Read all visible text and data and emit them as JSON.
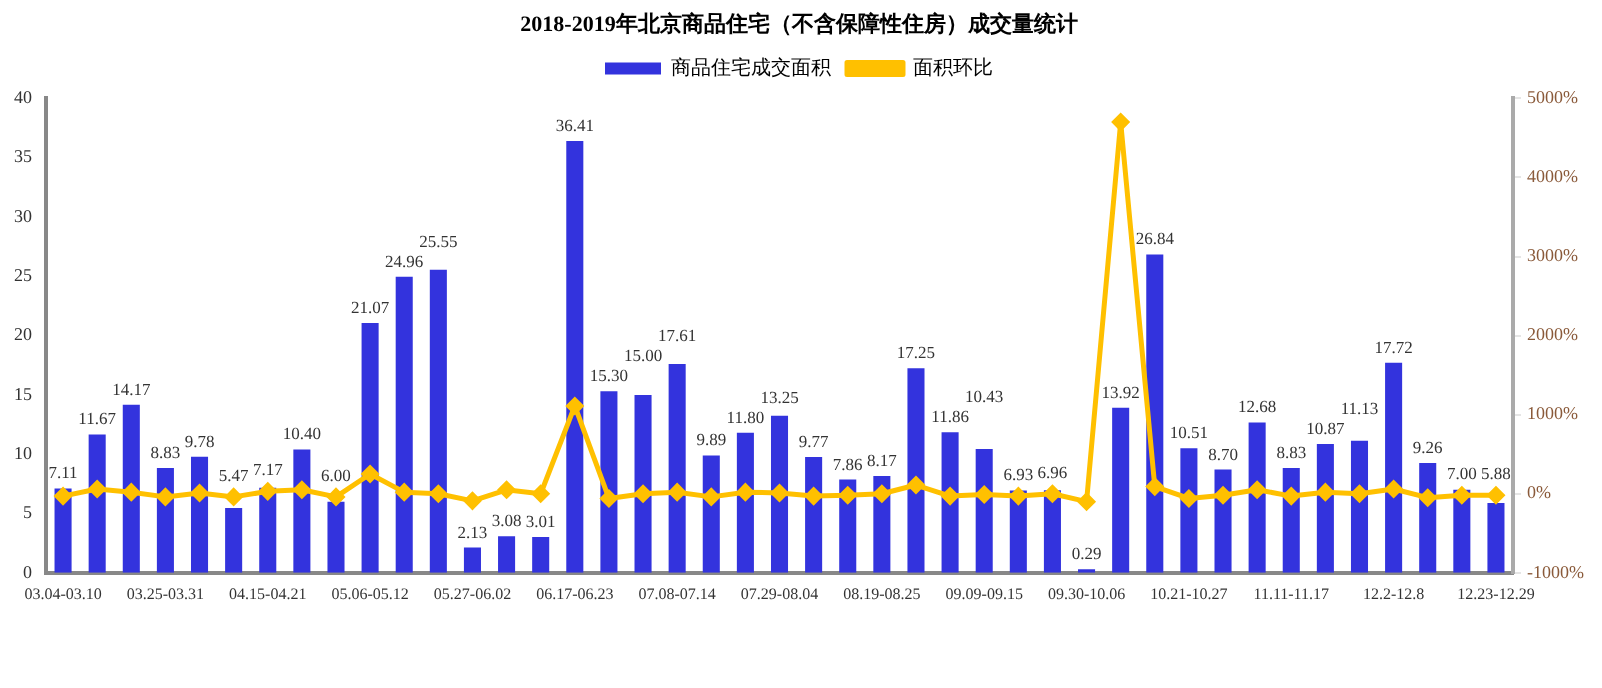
{
  "chart_data": {
    "type": "bar",
    "title": "2018-2019年北京商品住宅（不含保障性住房）成交量统计",
    "categories": [
      "03.04-03.10",
      null,
      null,
      "03.25-03.31",
      null,
      null,
      "04.15-04.21",
      null,
      null,
      "05.06-05.12",
      null,
      null,
      "05.27-06.02",
      null,
      null,
      "06.17-06.23",
      null,
      null,
      "07.08-07.14",
      null,
      null,
      "07.29-08.04",
      null,
      null,
      "08.19-08.25",
      null,
      null,
      "09.09-09.15",
      null,
      null,
      "09.30-10.06",
      null,
      null,
      "10.21-10.27",
      null,
      null,
      "11.11-11.17",
      null,
      null,
      "12.2-12.8",
      null,
      null,
      "12.23-12.29"
    ],
    "series": [
      {
        "name": "商品住宅成交面积",
        "type": "bar",
        "color": "#3333dd",
        "values": [
          7.11,
          11.67,
          14.17,
          8.83,
          9.78,
          5.47,
          7.17,
          10.4,
          6.0,
          21.07,
          24.96,
          25.55,
          2.13,
          3.08,
          3.01,
          36.41,
          15.3,
          15.0,
          17.61,
          9.89,
          11.8,
          13.25,
          9.77,
          7.86,
          8.17,
          17.25,
          11.86,
          10.43,
          6.93,
          6.96,
          0.29,
          13.92,
          26.84,
          10.51,
          8.7,
          12.68,
          8.83,
          10.87,
          11.13,
          17.72,
          9.26,
          7.0,
          5.88
        ],
        "value_labels": [
          "7.11",
          "11.67",
          "14.17",
          "8.83",
          "9.78",
          "5.47",
          "7.17",
          "10.40",
          "6.00",
          "21.07",
          "24.96",
          "25.55",
          "2.13",
          "3.08",
          "3.01",
          "36.41",
          "15.30",
          "15.00",
          "17.61",
          "9.89",
          "11.80",
          "13.25",
          "9.77",
          "7.86",
          "8.17",
          "17.25",
          "11.86",
          "10.43",
          "6.93",
          "6.96",
          "0.29",
          "13.92",
          "26.84",
          "10.51",
          "8.70",
          "12.68",
          "8.83",
          "10.87",
          "11.13",
          "17.72",
          "9.26",
          "7.00",
          "5.88"
        ]
      },
      {
        "name": "面积环比",
        "type": "line",
        "axis": "y2",
        "color": "#ffc000",
        "marker": "diamond",
        "values": [
          -30,
          60,
          20,
          -40,
          10,
          -40,
          30,
          50,
          -40,
          250,
          20,
          0,
          -90,
          50,
          0,
          1110,
          -60,
          0,
          20,
          -40,
          20,
          10,
          -30,
          -20,
          0,
          110,
          -30,
          -10,
          -30,
          0,
          -100,
          4700,
          90,
          -60,
          -20,
          50,
          -30,
          20,
          0,
          60,
          -50,
          -20,
          -20
        ]
      }
    ],
    "ylim": [
      0,
      40
    ],
    "yticks": [
      0,
      5,
      10,
      15,
      20,
      25,
      30,
      35,
      40
    ],
    "y2lim": [
      -1000,
      5000
    ],
    "y2ticks": [
      {
        "value": -1000,
        "label": "-1000%"
      },
      {
        "value": 0,
        "label": "0%"
      },
      {
        "value": 1000,
        "label": "1000%"
      },
      {
        "value": 2000,
        "label": "2000%"
      },
      {
        "value": 3000,
        "label": "3000%"
      },
      {
        "value": 4000,
        "label": "4000%"
      },
      {
        "value": 5000,
        "label": "5000%"
      }
    ],
    "grid": false,
    "legend": "top"
  }
}
